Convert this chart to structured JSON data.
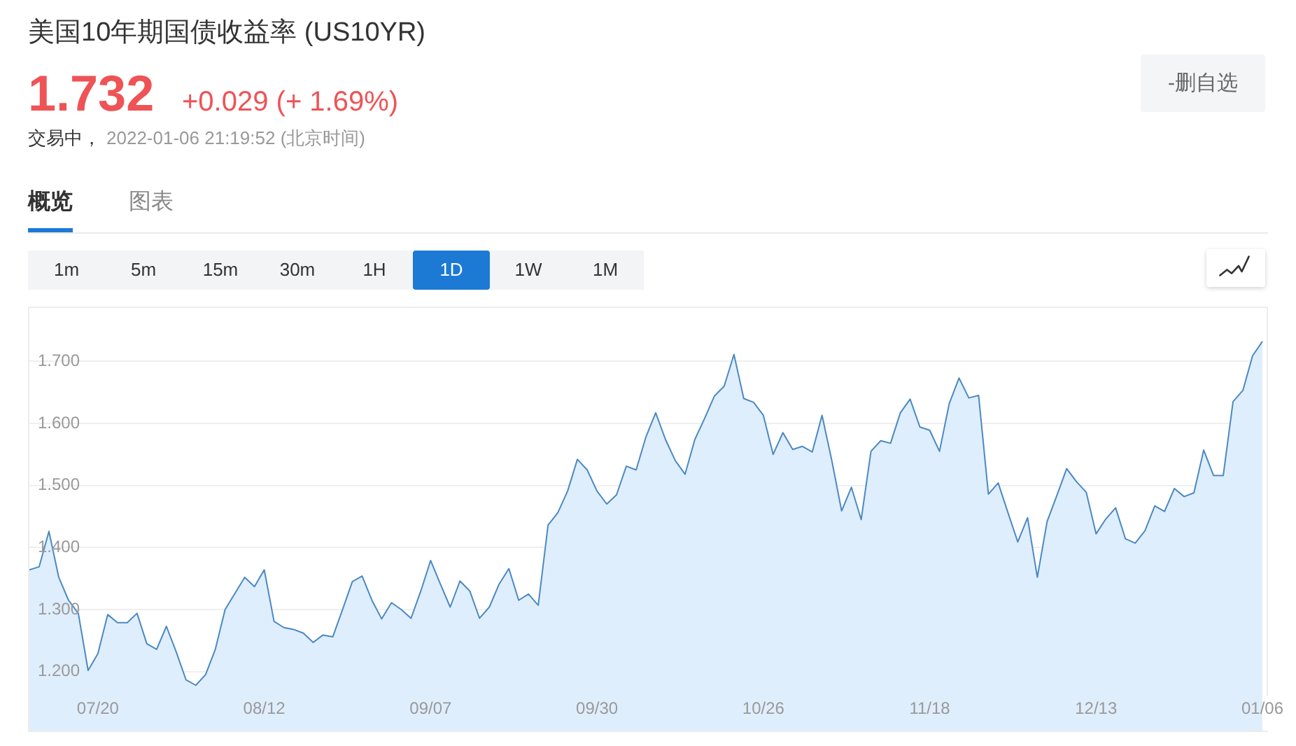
{
  "chart_data": {
    "type": "area",
    "title": "美国10年期国债收益率 (US10YR)",
    "annotations": [
      "1.732",
      "+0.029 (+ 1.69%)",
      "交易中，",
      "2022-01-06 21:19:52 (北京时间)",
      "概览",
      "图表",
      "1m",
      "5m",
      "15m",
      "30m",
      "1H",
      "1D",
      "1W",
      "1M",
      "-删自选"
    ],
    "categories": [
      null,
      null,
      null,
      null,
      null,
      null,
      null,
      "07/20",
      null,
      null,
      null,
      null,
      null,
      null,
      null,
      null,
      null,
      null,
      null,
      null,
      null,
      null,
      null,
      null,
      "08/12",
      null,
      null,
      null,
      null,
      null,
      null,
      null,
      null,
      null,
      null,
      null,
      null,
      null,
      null,
      null,
      null,
      "09/07",
      null,
      null,
      null,
      null,
      null,
      null,
      null,
      null,
      null,
      null,
      null,
      null,
      null,
      null,
      null,
      null,
      "09/30",
      null,
      null,
      null,
      null,
      null,
      null,
      null,
      null,
      null,
      null,
      null,
      null,
      null,
      null,
      null,
      null,
      "10/26",
      null,
      null,
      null,
      null,
      null,
      null,
      null,
      null,
      null,
      null,
      null,
      null,
      null,
      null,
      null,
      null,
      "11/18",
      null,
      null,
      null,
      null,
      null,
      null,
      null,
      null,
      null,
      null,
      null,
      null,
      null,
      null,
      null,
      null,
      "12/13",
      null,
      null,
      null,
      null,
      null,
      null,
      null,
      null,
      null,
      null,
      null,
      null,
      null,
      null,
      null,
      null,
      "01/06"
    ],
    "values": [
      1.364,
      1.369,
      1.426,
      1.352,
      1.315,
      1.294,
      1.202,
      1.229,
      1.292,
      1.279,
      1.279,
      1.294,
      1.245,
      1.236,
      1.273,
      1.232,
      1.187,
      1.178,
      1.195,
      1.236,
      1.3,
      1.326,
      1.352,
      1.337,
      1.364,
      1.281,
      1.271,
      1.268,
      1.262,
      1.247,
      1.259,
      1.256,
      1.3,
      1.345,
      1.354,
      1.315,
      1.285,
      1.311,
      1.3,
      1.286,
      1.33,
      1.379,
      1.341,
      1.304,
      1.346,
      1.33,
      1.286,
      1.304,
      1.341,
      1.366,
      1.315,
      1.325,
      1.307,
      1.436,
      1.456,
      1.491,
      1.542,
      1.525,
      1.491,
      1.47,
      1.485,
      1.531,
      1.525,
      1.578,
      1.617,
      1.574,
      1.54,
      1.518,
      1.574,
      1.608,
      1.644,
      1.66,
      1.711,
      1.64,
      1.634,
      1.613,
      1.55,
      1.585,
      1.558,
      1.563,
      1.554,
      1.613,
      1.54,
      1.459,
      1.497,
      1.445,
      1.555,
      1.572,
      1.568,
      1.617,
      1.639,
      1.594,
      1.589,
      1.555,
      1.632,
      1.673,
      1.641,
      1.645,
      1.486,
      1.504,
      1.456,
      1.409,
      1.448,
      1.352,
      1.442,
      1.484,
      1.527,
      1.506,
      1.489,
      1.422,
      1.446,
      1.464,
      1.414,
      1.407,
      1.427,
      1.467,
      1.458,
      1.495,
      1.482,
      1.488,
      1.557,
      1.516,
      1.516,
      1.635,
      1.653,
      1.709,
      1.732
    ],
    "color": "#dfeefc",
    "ylim": [
      1.105,
      1.786
    ],
    "yticks": [
      {
        "value": 1.2,
        "label": "1.200"
      },
      {
        "value": 1.3,
        "label": "1.300"
      },
      {
        "value": 1.4,
        "label": "1.400"
      },
      {
        "value": 1.5,
        "label": "1.500"
      },
      {
        "value": 1.6,
        "label": "1.600"
      },
      {
        "value": 1.7,
        "label": "1.700"
      }
    ],
    "grid": "y"
  }
}
